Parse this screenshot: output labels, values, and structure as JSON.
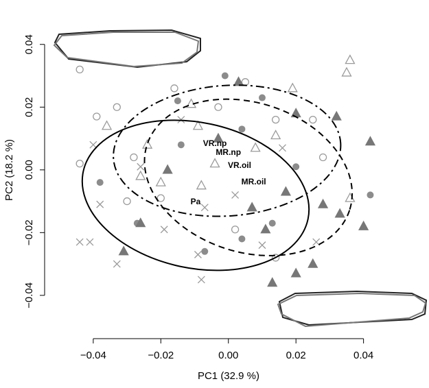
{
  "chart_data": {
    "type": "scatter",
    "x_label": "PC1 (32.9 %)",
    "y_label": "PC2 (18.2 %)",
    "xlim": [
      -0.0546,
      0.0543
    ],
    "ylim": [
      -0.0538,
      0.05
    ],
    "xticks": [
      {
        "value": -0.04,
        "label": "−0.04"
      },
      {
        "value": -0.02,
        "label": "−0.02"
      },
      {
        "value": 0,
        "label": "0.00"
      },
      0.02,
      0.04
    ],
    "yticks": [
      {
        "value": -0.04,
        "label": "−0.04"
      },
      {
        "value": -0.02,
        "label": "−0.02"
      },
      {
        "value": 0,
        "label": "0.00"
      },
      0.02,
      0.04
    ],
    "series": [
      {
        "marker": "open-circle",
        "color": "#9a9a9a",
        "x": [
          -0.044,
          -0.039,
          -0.033,
          -0.044,
          -0.03,
          -0.02,
          -0.016,
          0.002,
          0.005,
          0.014,
          0.025,
          0.028,
          0.014,
          -0.028,
          -0.003
        ],
        "values": [
          0.032,
          0.017,
          0.02,
          0.002,
          -0.01,
          -0.009,
          0.026,
          -0.019,
          0.028,
          0.016,
          0.016,
          0.004,
          -0.028,
          0.004,
          0.02
        ]
      },
      {
        "marker": "filled-circle",
        "color": "#8c8c8c",
        "x": [
          -0.001,
          -0.038,
          -0.015,
          -0.014,
          0.004,
          -0.007,
          0.013,
          0.02,
          0.042,
          -0.027,
          0.004,
          0.01
        ],
        "values": [
          0.03,
          -0.004,
          0.022,
          0.008,
          -0.022,
          -0.026,
          -0.017,
          0.001,
          -0.008,
          -0.017,
          0.013,
          0.023
        ]
      },
      {
        "marker": "open-triangle",
        "color": "#9a9a9a",
        "x": [
          0.036,
          0.035,
          0.019,
          -0.011,
          -0.024,
          -0.036,
          -0.02,
          -0.008,
          -0.004,
          0.036,
          0.008,
          0.014,
          -0.009,
          -0.026
        ],
        "values": [
          0.035,
          0.031,
          0.026,
          0.021,
          0.008,
          0.014,
          -0.004,
          -0.005,
          0.002,
          -0.009,
          0.007,
          0.011,
          0.014,
          -0.002
        ]
      },
      {
        "marker": "filled-triangle",
        "color": "#777777",
        "x": [
          0.003,
          0.02,
          0.032,
          0.042,
          0.033,
          0.028,
          0.02,
          0.013,
          0.011,
          -0.031,
          -0.026,
          -0.018,
          -0.003,
          0.017,
          0.007,
          0.025,
          0.04
        ],
        "values": [
          0.028,
          0.018,
          0.017,
          0.009,
          -0.014,
          -0.011,
          -0.033,
          -0.036,
          -0.019,
          -0.026,
          -0.017,
          0.0,
          0.01,
          -0.007,
          -0.012,
          -0.03,
          -0.018
        ]
      },
      {
        "marker": "cross",
        "color": "#9a9a9a",
        "x": [
          -0.04,
          -0.044,
          -0.041,
          -0.033,
          -0.038,
          -0.008,
          -0.009,
          -0.019,
          0.01,
          0.026,
          -0.007,
          0.002,
          -0.014,
          0.016,
          -0.026
        ],
        "values": [
          0.008,
          -0.023,
          -0.023,
          -0.03,
          -0.011,
          -0.035,
          -0.027,
          -0.019,
          -0.024,
          -0.023,
          -0.012,
          -0.008,
          0.016,
          0.007,
          0.001
        ]
      }
    ],
    "ellipses": [
      {
        "line": "solid",
        "cx": -0.0097,
        "cy": -0.0081,
        "rx": 0.034,
        "ry": 0.0232,
        "angle": 12
      },
      {
        "line": "dashdot",
        "cx": -0.0004,
        "cy": 0.0061,
        "rx": 0.0337,
        "ry": 0.0208,
        "angle": -4
      },
      {
        "line": "dashed",
        "cx": 0.0059,
        "cy": -0.0024,
        "rx": 0.0315,
        "ry": 0.0238,
        "angle": 18
      }
    ],
    "group_means": [
      {
        "name": "VR.np",
        "x": -0.004,
        "y": 0.0083
      },
      {
        "name": "MR.np",
        "x": 0.0,
        "y": 0.0055
      },
      {
        "name": "VR.oil",
        "x": 0.0033,
        "y": 0.0013
      },
      {
        "name": "MR.oil",
        "x": 0.0075,
        "y": -0.0039
      },
      {
        "name": "Pa",
        "x": -0.0097,
        "y": -0.0103
      }
    ]
  }
}
